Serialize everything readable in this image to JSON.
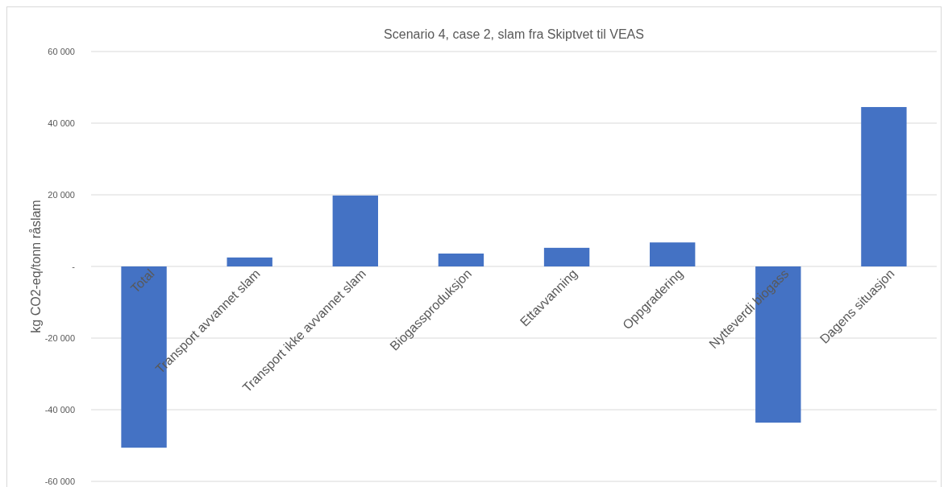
{
  "chart_data": {
    "type": "bar",
    "title": "Scenario 4, case 2, slam fra Skiptvet til VEAS",
    "ylabel": "kg CO2-eq/tonn råslam",
    "categories": [
      "Total",
      "Transport avvannet slam",
      "Transport ikke avvannet slam",
      "Biogassproduksjon",
      "Ettavvanning",
      "Oppgradering",
      "Nytteverdi biogass",
      "Dagens situasjon"
    ],
    "values": [
      -50600,
      2500,
      19800,
      3600,
      5200,
      6700,
      -43600,
      44500
    ],
    "color": "#4472c4",
    "ylim": [
      -60000,
      60000
    ],
    "yticks": [
      {
        "value": -60000,
        "label": "-60 000"
      },
      {
        "value": -40000,
        "label": "-40 000"
      },
      {
        "value": -20000,
        "label": "-20 000"
      },
      {
        "value": 0,
        "label": "-"
      },
      {
        "value": 20000,
        "label": "20 000"
      },
      {
        "value": 40000,
        "label": "40 000"
      },
      {
        "value": 60000,
        "label": "60 000"
      }
    ],
    "grid": "y"
  }
}
